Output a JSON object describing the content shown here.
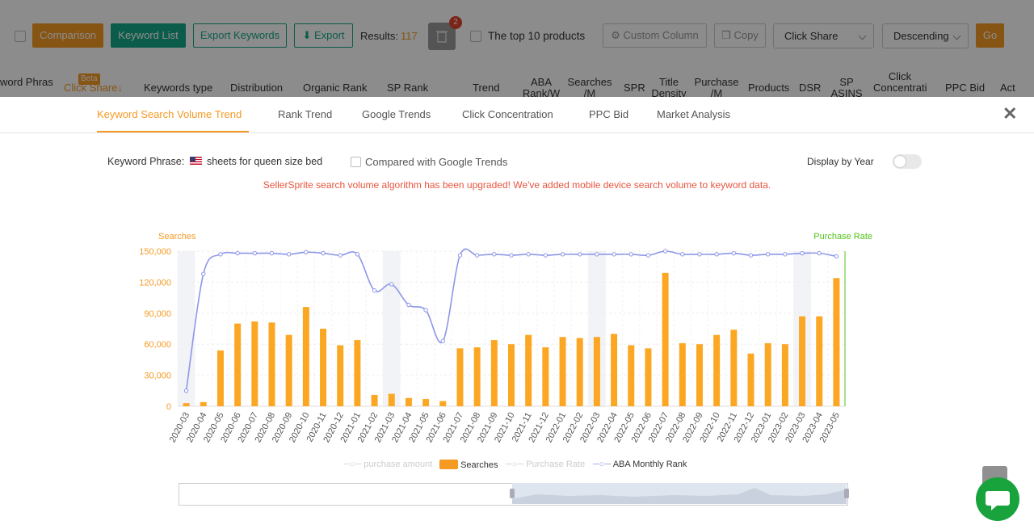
{
  "toolbar": {
    "comparison": "Comparison",
    "keyword_list": "Keyword List",
    "export_keywords": "Export Keywords",
    "export": "Export",
    "results_label": "Results:",
    "results_count": "117",
    "trash_badge": "2",
    "top10": "The top 10 products",
    "custom_column": "Custom Column",
    "copy": "Copy",
    "sort_field": "Click Share",
    "sort_order": "Descending",
    "go": "Go"
  },
  "columns": {
    "keyword_phrase": "word Phras",
    "beta": "Beta",
    "click_share": "Click Share↓",
    "keywords_type": "Keywords type",
    "distribution": "Distribution",
    "organic_rank": "Organic Rank",
    "sp_rank": "SP Rank",
    "trend": "Trend",
    "aba_rank": "ABA Rank/W",
    "searches_m": "Searches /M",
    "spr": "SPR",
    "title_density": "Title Density",
    "purchase_m": "Purchase /M",
    "products": "Products",
    "dsr": "DSR",
    "sp_asins": "SP ASINS",
    "click_concentration": "Click Concentrati",
    "ppc_bid": "PPC Bid",
    "act": "Act"
  },
  "tabs": [
    {
      "label": "Keyword Search Volume Trend"
    },
    {
      "label": "Rank Trend"
    },
    {
      "label": "Google Trends"
    },
    {
      "label": "Click Concentration"
    },
    {
      "label": "PPC Bid"
    },
    {
      "label": "Market Analysis"
    }
  ],
  "panel": {
    "keyword_label": "Keyword Phrase:",
    "keyword_value": "sheets for queen size bed",
    "compare_google": "Compared with Google Trends",
    "display_by_year": "Display by Year",
    "notice": "SellerSprite search volume algorithm has been upgraded! We've added mobile device search volume to keyword data."
  },
  "legend": {
    "purchase_amount": "purchase amount",
    "searches": "Searches",
    "purchase_rate": "Purchase Rate",
    "aba_rank": "ABA Monthly Rank"
  },
  "colors": {
    "orange": "#f59a23",
    "teal": "#17a889",
    "line": "#8c97e8",
    "green": "#52c41a"
  },
  "chart_data": {
    "type": "bar",
    "left_axis_title": "Searches",
    "right_axis_title": "Purchase Rate",
    "yticks": [
      "0",
      "30,000",
      "60,000",
      "90,000",
      "120,000",
      "150,000"
    ],
    "ylim": [
      0,
      150000
    ],
    "categories": [
      "2020-03",
      "2020-04",
      "2020-05",
      "2020-06",
      "2020-07",
      "2020-08",
      "2020-09",
      "2020-10",
      "2020-11",
      "2020-12",
      "2021-01",
      "2021-02",
      "2021-03",
      "2021-04",
      "2021-05",
      "2021-06",
      "2021-07",
      "2021-08",
      "2021-09",
      "2021-10",
      "2021-11",
      "2021-12",
      "2022-01",
      "2022-02",
      "2022-03",
      "2022-04",
      "2022-05",
      "2022-06",
      "2022-07",
      "2022-08",
      "2022-09",
      "2022-10",
      "2022-11",
      "2022-12",
      "2023-01",
      "2023-02",
      "2023-03",
      "2023-04",
      "2023-05"
    ],
    "series": [
      {
        "name": "Searches",
        "values": [
          3000,
          4000,
          54000,
          80000,
          82000,
          81000,
          69000,
          96000,
          75000,
          59000,
          64000,
          11000,
          12000,
          8000,
          7000,
          5000,
          56000,
          57000,
          64000,
          60000,
          69000,
          57000,
          67000,
          66000,
          67000,
          70000,
          59000,
          56000,
          129000,
          61000,
          60000,
          69000,
          74000,
          51000,
          61000,
          60000,
          87000,
          87000,
          124000
        ]
      },
      {
        "name": "ABA Monthly Rank",
        "values": [
          15000,
          128000,
          147000,
          148000,
          148000,
          148000,
          147000,
          149000,
          148000,
          146000,
          147000,
          112000,
          118000,
          98000,
          93000,
          63000,
          146000,
          146000,
          147000,
          146000,
          147000,
          146000,
          147000,
          147000,
          147000,
          147000,
          147000,
          146000,
          150000,
          147000,
          147000,
          147000,
          148000,
          146000,
          147000,
          147000,
          148000,
          148000,
          145000
        ]
      }
    ],
    "shaded_categories": [
      "2020-03",
      "2021-03",
      "2022-03",
      "2023-03"
    ],
    "legend_position": "bottom"
  }
}
